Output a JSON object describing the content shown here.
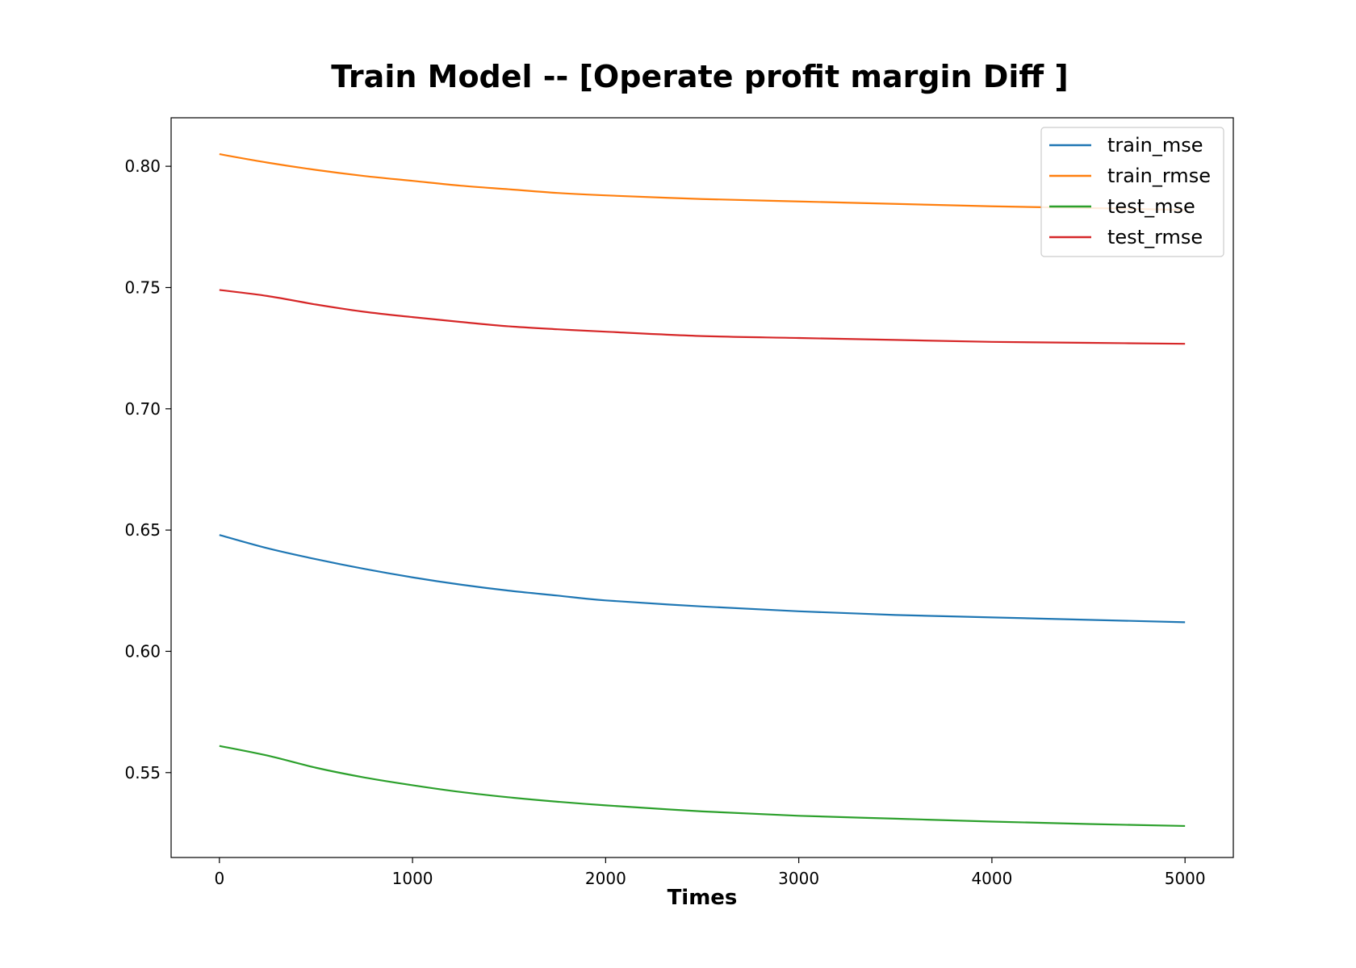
{
  "chart_data": {
    "type": "line",
    "title": "Train Model -- [Operate  profit margin Diff ]",
    "xlabel": "Times",
    "ylabel": "",
    "xlim": [
      -250,
      5250
    ],
    "ylim": [
      0.515,
      0.82
    ],
    "xticks": [
      0,
      1000,
      2000,
      3000,
      4000,
      5000
    ],
    "yticks": [
      0.55,
      0.6,
      0.65,
      0.7,
      0.75,
      0.8
    ],
    "xtick_labels": [
      "0",
      "1000",
      "2000",
      "3000",
      "4000",
      "5000"
    ],
    "ytick_labels": [
      "0.55",
      "0.60",
      "0.65",
      "0.70",
      "0.75",
      "0.80"
    ],
    "grid": false,
    "legend_position": "top-right",
    "x": [
      0,
      250,
      500,
      750,
      1000,
      1250,
      1500,
      1750,
      2000,
      2500,
      3000,
      3500,
      4000,
      4500,
      5000
    ],
    "series": [
      {
        "name": "train_mse",
        "color": "#1f77b4",
        "values": [
          0.648,
          0.6425,
          0.638,
          0.634,
          0.6305,
          0.6275,
          0.625,
          0.623,
          0.621,
          0.6185,
          0.6165,
          0.615,
          0.614,
          0.613,
          0.612
        ]
      },
      {
        "name": "train_rmse",
        "color": "#ff7f0e",
        "values": [
          0.805,
          0.8015,
          0.7985,
          0.796,
          0.794,
          0.792,
          0.7905,
          0.789,
          0.788,
          0.7865,
          0.7855,
          0.7845,
          0.7835,
          0.7828,
          0.782
        ]
      },
      {
        "name": "test_mse",
        "color": "#2ca02c",
        "values": [
          0.561,
          0.557,
          0.552,
          0.548,
          0.5448,
          0.542,
          0.5398,
          0.538,
          0.5365,
          0.534,
          0.5322,
          0.531,
          0.5298,
          0.5288,
          0.528
        ]
      },
      {
        "name": "test_rmse",
        "color": "#d62728",
        "values": [
          0.749,
          0.7465,
          0.743,
          0.74,
          0.7378,
          0.7358,
          0.734,
          0.7328,
          0.7318,
          0.73,
          0.7292,
          0.7284,
          0.7276,
          0.7272,
          0.7268
        ]
      }
    ]
  }
}
